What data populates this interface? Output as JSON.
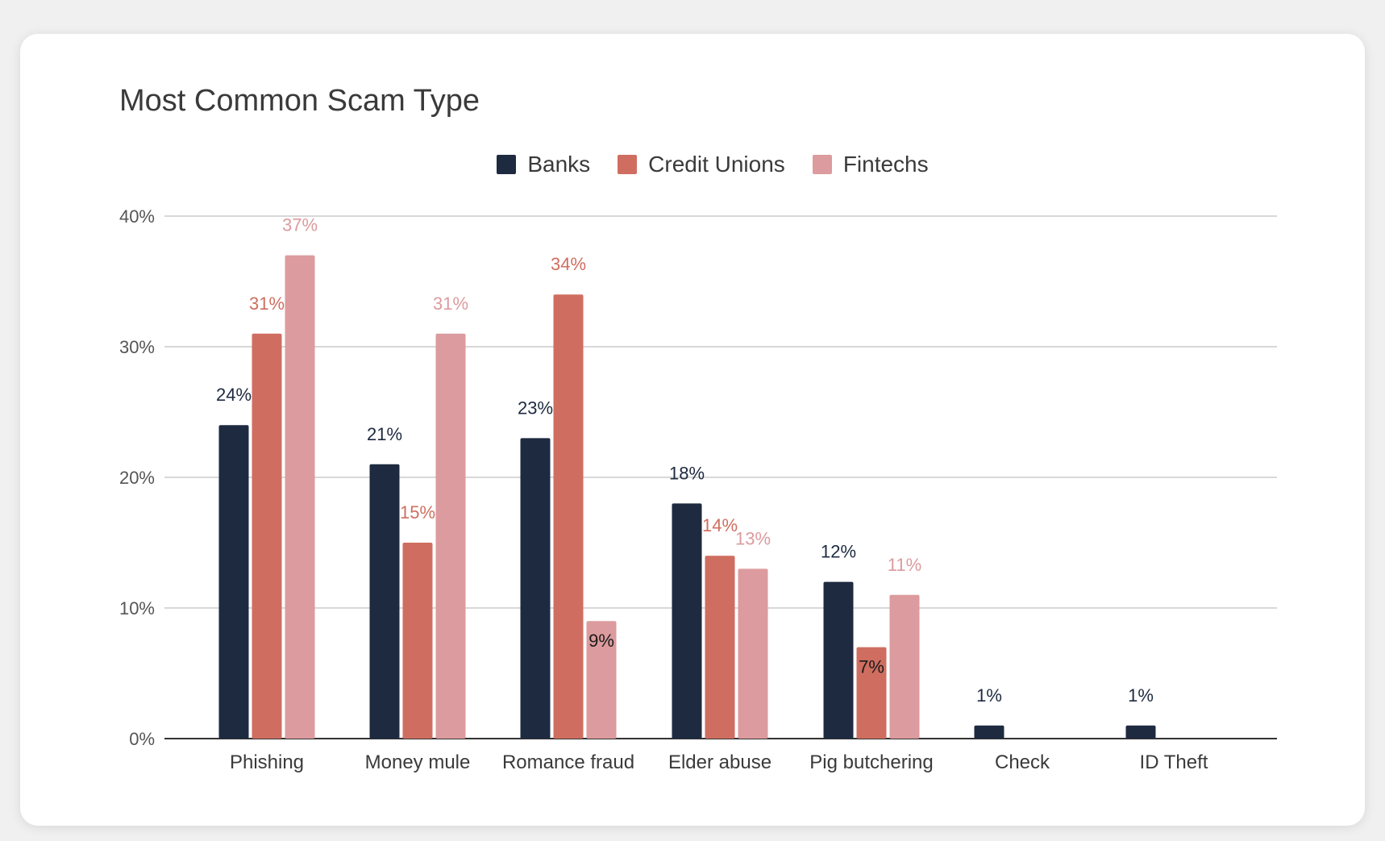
{
  "chart_data": {
    "type": "bar",
    "title": "Most Common Scam Type",
    "categories": [
      "Phishing",
      "Money mule",
      "Romance fraud",
      "Elder abuse",
      "Pig butchering",
      "Check",
      "ID Theft"
    ],
    "series": [
      {
        "name": "Banks",
        "color": "#1e2a40",
        "values": [
          24,
          21,
          23,
          18,
          12,
          1,
          1
        ],
        "labels": [
          "24%",
          "21%",
          "23%",
          "18%",
          "12%",
          "1%",
          "1%"
        ]
      },
      {
        "name": "Credit Unions",
        "color": "#cf6e60",
        "values": [
          31,
          15,
          34,
          14,
          7,
          null,
          null
        ],
        "labels": [
          "31%",
          "15%",
          "34%",
          "14%",
          "7%",
          "",
          ""
        ]
      },
      {
        "name": "Fintechs",
        "color": "#dc9b9e",
        "values": [
          37,
          31,
          9,
          13,
          11,
          null,
          null
        ],
        "labels": [
          "37%",
          "31%",
          "9%",
          "13%",
          "11%",
          "",
          ""
        ]
      }
    ],
    "label_colors": [
      "#1e2a40",
      "#cf6e60",
      "#dc9b9e"
    ],
    "inside_label_color": "#1a1a1a",
    "ylim": [
      0,
      40
    ],
    "yticks": [
      0,
      10,
      20,
      30,
      40
    ],
    "ytick_labels": [
      "0%",
      "10%",
      "20%",
      "30%",
      "40%"
    ],
    "xlabel": "",
    "ylabel": "",
    "grid": true,
    "legend_position": "top-center"
  }
}
